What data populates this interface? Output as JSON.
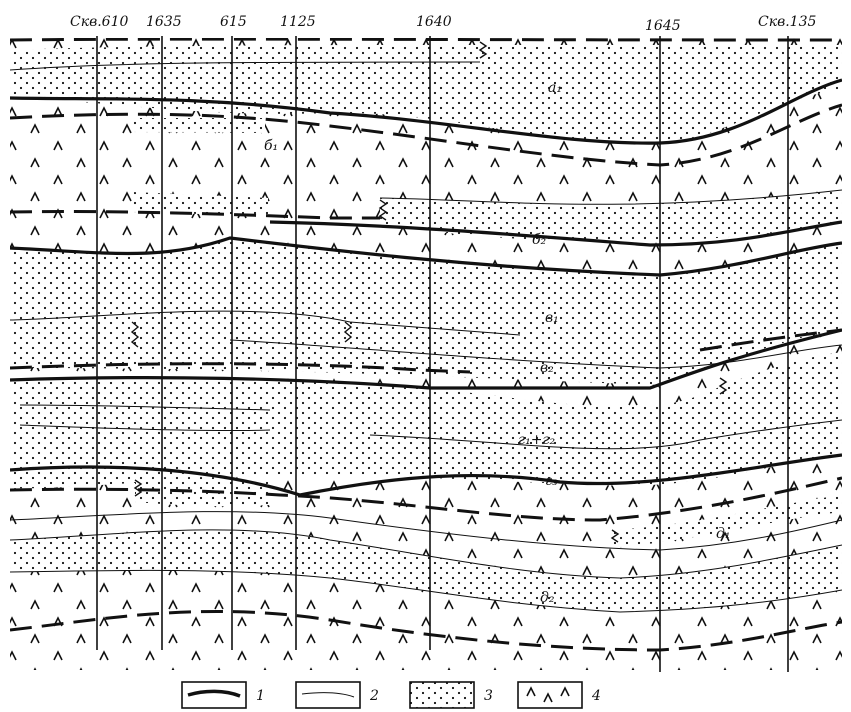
{
  "figure": {
    "wells": [
      "Скв.610",
      "1635",
      "615",
      "1125",
      "1640",
      "1645",
      "Скв.135"
    ],
    "units": [
      "а₁",
      "б₁",
      "б₂",
      "в₁",
      "в₂",
      "г₁+г₂",
      "г₃",
      "д₁",
      "д₂"
    ],
    "legend": [
      {
        "number": "1",
        "symbol": "thick-line"
      },
      {
        "number": "2",
        "symbol": "thin-line"
      },
      {
        "number": "3",
        "symbol": "dots"
      },
      {
        "number": "4",
        "symbol": "carets"
      }
    ]
  },
  "colors": {
    "ink": "#111111",
    "paper": "#ffffff"
  }
}
